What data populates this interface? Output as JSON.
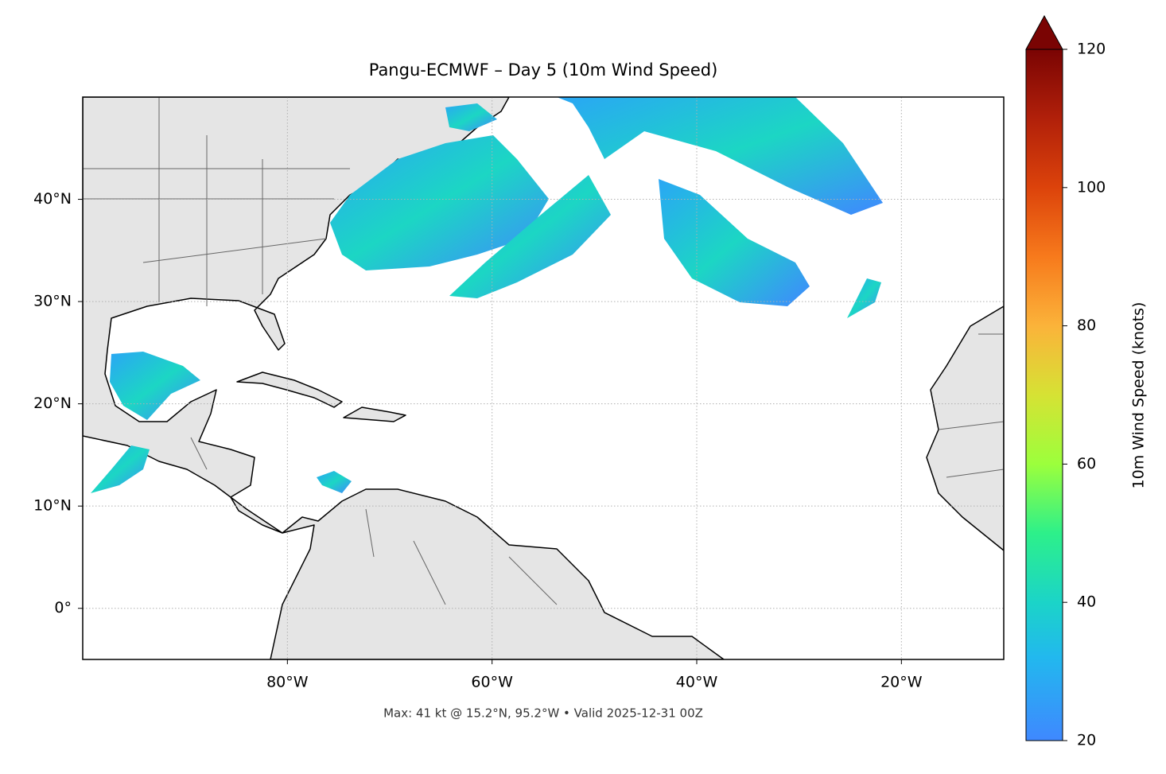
{
  "map": {
    "title": "Pangu-ECMWF – Day 5 (10m Wind Speed)",
    "note": "Max: 41 kt @ 15.2°N, 95.2°W • Valid 2025-12-31 00Z",
    "xlim": [
      -100,
      -10
    ],
    "ylim": [
      -5,
      50
    ],
    "xticks": [
      {
        "value": -80,
        "label": "80°W"
      },
      {
        "value": -60,
        "label": "60°W"
      },
      {
        "value": -40,
        "label": "40°W"
      },
      {
        "value": -20,
        "label": "20°W"
      }
    ],
    "yticks": [
      {
        "value": 0,
        "label": "0°"
      },
      {
        "value": 10,
        "label": "10°N"
      },
      {
        "value": 20,
        "label": "20°N"
      },
      {
        "value": 30,
        "label": "30°N"
      },
      {
        "value": 40,
        "label": "40°N"
      }
    ],
    "colorbar": {
      "label": "10m Wind Speed (knots)",
      "lim": [
        20,
        120
      ],
      "ticks": [
        20,
        40,
        60,
        80,
        100,
        120
      ]
    }
  }
}
